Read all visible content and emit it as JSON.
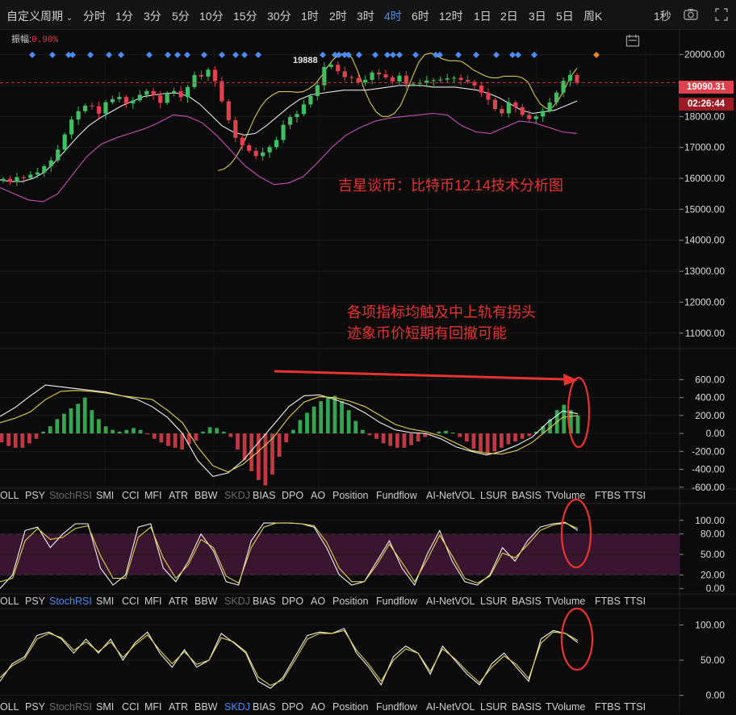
{
  "toolbar": {
    "period_select": "自定义周期",
    "timeframes": [
      "分时",
      "1分",
      "3分",
      "5分",
      "10分",
      "15分",
      "30分",
      "1时",
      "2时",
      "3时",
      "4时",
      "6时",
      "12时",
      "1日",
      "2日",
      "3日",
      "5日",
      "周K"
    ],
    "active_timeframe": "4时",
    "refresh": "1秒"
  },
  "amplitude": {
    "label": "振幅:",
    "value": "0.90%"
  },
  "price_labels": {
    "current": "19090.31",
    "countdown": "02:26:44",
    "high_marker": "19888"
  },
  "annotations": {
    "title": "吉星谈币：比特币12.14技术分析图",
    "note_line1": "各项指标均触及中上轨有拐头",
    "note_line2": "迹象币价短期有回撤可能"
  },
  "indicator_tabs": [
    "OLL",
    "PSY",
    "StochRSI",
    "SMI",
    "CCI",
    "MFI",
    "ATR",
    "BBW",
    "SKDJ",
    "BIAS",
    "DPO",
    "AO",
    "Position",
    "Fundflow",
    "AI-NetVOL",
    "LSUR",
    "BASIS",
    "TVolume",
    "FTBS",
    "TTSI"
  ],
  "tab_rows": [
    {
      "selected": "",
      "dim": [
        "StochRSI",
        "SKDJ"
      ]
    },
    {
      "selected": "StochRSI",
      "dim": [
        "SKDJ"
      ]
    },
    {
      "selected": "SKDJ",
      "dim": [
        "StochRSI"
      ]
    }
  ],
  "colors": {
    "up": "#3fbf5f",
    "down": "#e0414d",
    "accent": "#4c8cf5",
    "annotation": "#e8332f",
    "band": "#3a1530"
  },
  "chart_data": [
    {
      "type": "candlestick",
      "name": "price",
      "yticks": [
        20000,
        19000,
        18000,
        17000,
        16000,
        15000,
        14000,
        13000,
        12000,
        11000
      ],
      "ylim": [
        10500,
        20250
      ],
      "close": [
        15980,
        15890,
        16040,
        16010,
        16120,
        16190,
        16390,
        16580,
        16930,
        17420,
        17900,
        18170,
        18350,
        18330,
        18090,
        18460,
        18560,
        18630,
        18420,
        18520,
        18700,
        18820,
        18680,
        18440,
        18750,
        18820,
        18620,
        18950,
        19340,
        19290,
        19510,
        19140,
        18490,
        17880,
        17310,
        17070,
        16890,
        16720,
        16840,
        17010,
        17240,
        17730,
        17980,
        18080,
        18390,
        18660,
        19010,
        19600,
        19670,
        19460,
        19270,
        19240,
        19100,
        19180,
        19420,
        19360,
        19260,
        19130,
        19320,
        19050,
        19060,
        19090,
        19160,
        19170,
        19190,
        19230,
        19250,
        19180,
        19120,
        19000,
        18770,
        18540,
        18240,
        18100,
        18450,
        18300,
        18050,
        17920,
        18000,
        18180,
        18450,
        18770,
        19150,
        19340,
        19090
      ],
      "bands": {
        "upper_line": [
          16250,
          16300,
          16450,
          16700,
          17050,
          17500,
          17950,
          18300,
          18550,
          18700,
          18800,
          18800,
          18800,
          18780,
          18800,
          18900,
          19050,
          19300,
          19600,
          19850,
          20000,
          20050,
          19900,
          19450,
          18900,
          18450,
          18150,
          18000,
          18000,
          18100,
          18350,
          18800,
          19300,
          19750,
          20000,
          20050,
          19950,
          19850,
          19800,
          19800,
          19780,
          19650,
          19500,
          19400,
          19300,
          19250,
          19250,
          19300,
          19300,
          19300,
          19250,
          19100,
          18700,
          18400,
          18250,
          18300,
          18550,
          18900,
          19300,
          19560
        ],
        "mid_line": [
          15950,
          15900,
          15900,
          16000,
          16200,
          16550,
          16950,
          17350,
          17700,
          17950,
          18150,
          18350,
          18500,
          18650,
          18700,
          18750,
          18750,
          18650,
          18400,
          18050,
          17700,
          17500,
          17400,
          17450,
          17700,
          18000,
          18300,
          18550,
          18700,
          18750,
          18800,
          18850,
          18850,
          18850,
          18900,
          18950,
          19000,
          19000,
          19000,
          18950,
          18950,
          18950,
          18900,
          18850,
          18750,
          18600,
          18400,
          18200,
          18100,
          18150,
          18200,
          18350,
          18500
        ]
      },
      "bb_lower": [
        15700,
        15500,
        15300,
        15250,
        15500,
        16100,
        16700,
        17100,
        17300,
        17450,
        17600,
        17800,
        18050,
        18000,
        17800,
        17400,
        16900,
        16400,
        16050,
        15800,
        15850,
        16050,
        16500,
        17000,
        17400,
        17650,
        17850,
        17950,
        18000,
        18050,
        18100,
        18050,
        17700,
        17500,
        17450,
        17650,
        17850,
        17800,
        17650,
        17500,
        17450
      ]
    },
    {
      "type": "histogram",
      "name": "oscillator",
      "yticks": [
        600,
        400,
        200,
        0,
        -200,
        -400,
        -600
      ],
      "ylim": [
        -620,
        640
      ],
      "histogram": [
        -100,
        -140,
        -160,
        -160,
        -110,
        -60,
        20,
        80,
        160,
        220,
        280,
        330,
        400,
        260,
        160,
        80,
        40,
        20,
        40,
        60,
        40,
        -10,
        -60,
        -100,
        -140,
        -160,
        -180,
        -120,
        -80,
        20,
        70,
        60,
        20,
        -40,
        -180,
        -300,
        -420,
        -520,
        -580,
        -460,
        -260,
        -100,
        40,
        150,
        230,
        300,
        360,
        400,
        420,
        360,
        260,
        140,
        40,
        -20,
        -60,
        -110,
        -140,
        -160,
        -160,
        -130,
        -90,
        -40,
        -10,
        20,
        30,
        10,
        -40,
        -90,
        -170,
        -210,
        -230,
        -200,
        -160,
        -120,
        -90,
        -60,
        -30,
        20,
        80,
        160,
        260,
        320,
        260,
        200
      ],
      "line_fast": [
        190,
        290,
        420,
        540,
        520,
        500,
        480,
        460,
        420,
        380,
        300,
        180,
        0,
        -300,
        -480,
        -440,
        -300,
        -100,
        100,
        300,
        420,
        430,
        380,
        320,
        230,
        120,
        40,
        10,
        0,
        -60,
        -150,
        -200,
        -240,
        -200,
        -130,
        -40,
        120,
        250,
        220
      ],
      "line_slow": [
        120,
        170,
        240,
        380,
        470,
        480,
        470,
        450,
        420,
        400,
        380,
        260,
        120,
        -150,
        -360,
        -430,
        -340,
        -200,
        -40,
        180,
        350,
        410,
        400,
        360,
        300,
        200,
        100,
        50,
        20,
        -30,
        -110,
        -190,
        -220,
        -230,
        -190,
        -100,
        40,
        180,
        200
      ]
    },
    {
      "type": "line",
      "name": "StochRSI",
      "yticks": [
        100,
        80,
        50,
        20,
        0
      ],
      "ylim": [
        -8,
        108
      ],
      "band": [
        20,
        80
      ],
      "k": [
        0,
        20,
        85,
        90,
        60,
        80,
        95,
        95,
        30,
        5,
        20,
        90,
        95,
        30,
        10,
        40,
        80,
        55,
        10,
        5,
        70,
        96,
        96,
        96,
        95,
        90,
        60,
        20,
        5,
        10,
        40,
        70,
        30,
        5,
        50,
        85,
        40,
        10,
        5,
        20,
        60,
        40,
        70,
        90,
        95,
        97,
        85
      ],
      "d": [
        10,
        15,
        70,
        88,
        72,
        75,
        88,
        92,
        48,
        15,
        15,
        75,
        90,
        45,
        15,
        35,
        72,
        60,
        18,
        8,
        60,
        90,
        96,
        96,
        95,
        92,
        68,
        30,
        10,
        10,
        35,
        65,
        38,
        10,
        42,
        78,
        48,
        15,
        8,
        18,
        52,
        45,
        64,
        85,
        93,
        96,
        88
      ]
    },
    {
      "type": "line",
      "name": "SKDJ",
      "yticks": [
        100,
        50,
        0
      ],
      "ylim": [
        -5,
        112
      ],
      "k": [
        20,
        45,
        55,
        85,
        90,
        80,
        60,
        80,
        60,
        80,
        50,
        75,
        90,
        60,
        40,
        65,
        40,
        50,
        88,
        75,
        60,
        20,
        10,
        25,
        55,
        85,
        90,
        88,
        95,
        60,
        40,
        15,
        55,
        70,
        60,
        30,
        70,
        50,
        30,
        15,
        45,
        60,
        40,
        20,
        80,
        92,
        88,
        75
      ],
      "d": [
        25,
        42,
        52,
        80,
        88,
        82,
        64,
        76,
        62,
        76,
        54,
        72,
        86,
        64,
        45,
        62,
        44,
        50,
        82,
        76,
        62,
        26,
        14,
        22,
        50,
        80,
        88,
        88,
        92,
        64,
        44,
        20,
        50,
        66,
        60,
        34,
        66,
        52,
        34,
        18,
        40,
        56,
        44,
        24,
        74,
        90,
        88,
        78
      ]
    }
  ]
}
